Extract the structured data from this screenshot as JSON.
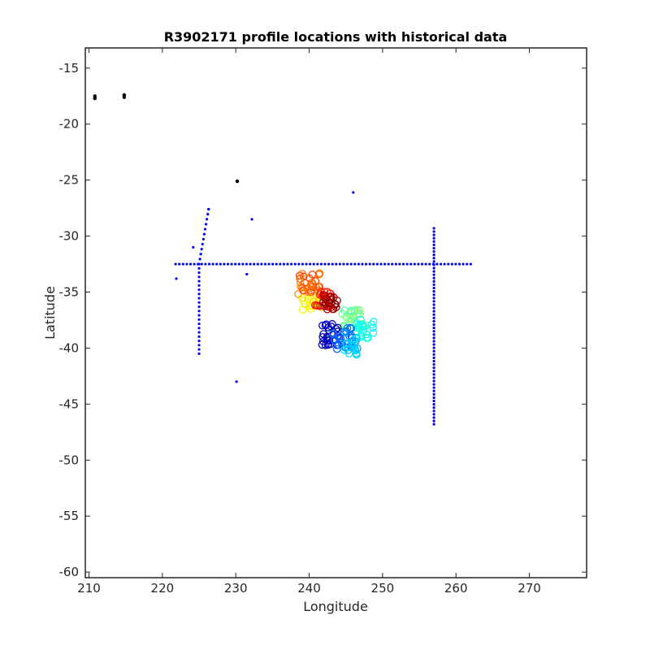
{
  "chart_data": {
    "type": "scatter",
    "title": "R3902171 profile locations with historical data",
    "xlabel": "Longitude",
    "ylabel": "Latitude",
    "xlim": [
      209.5,
      277.8
    ],
    "ylim": [
      -60.5,
      -13.2
    ],
    "xticks": [
      210,
      220,
      230,
      240,
      250,
      260,
      270
    ],
    "yticks": [
      -15,
      -20,
      -25,
      -30,
      -35,
      -40,
      -45,
      -50,
      -55,
      -60
    ],
    "grid": false,
    "legend": "none",
    "colors": {
      "axes": "#262626",
      "historical": "#0000ff",
      "reference": "#000000",
      "colormap": "jet"
    },
    "series": [
      {
        "role": "historical",
        "color": "#0000ff",
        "marker": "dot",
        "points": [
          [
            221.9,
            -33.8
          ],
          [
            224.2,
            -31.0
          ],
          [
            226.3,
            -27.6
          ],
          [
            232.2,
            -28.5
          ],
          [
            231.5,
            -33.4
          ],
          [
            246.0,
            -26.1
          ],
          [
            230.1,
            -43.0
          ]
        ],
        "lines": [
          {
            "from": [
              221.8,
              -32.5
            ],
            "to": [
              262.0,
              -32.5
            ],
            "count": 80
          },
          {
            "from": [
              225.0,
              -32.5
            ],
            "to": [
              225.0,
              -40.5
            ],
            "count": 22
          },
          {
            "from": [
              225.0,
              -32.5
            ],
            "to": [
              226.3,
              -27.6
            ],
            "count": 12
          },
          {
            "from": [
              257.0,
              -29.3
            ],
            "to": [
              257.0,
              -46.8
            ],
            "count": 60
          }
        ]
      },
      {
        "role": "reference",
        "color": "#000000",
        "marker": "dot",
        "points": [
          [
            210.8,
            -17.5
          ],
          [
            210.8,
            -17.7
          ],
          [
            214.8,
            -17.4
          ],
          [
            214.8,
            -17.6
          ],
          [
            230.2,
            -25.1
          ]
        ]
      },
      {
        "role": "float-profiles",
        "colormap": "jet",
        "marker": "profile-number",
        "clusters": [
          {
            "center": [
              240.0,
              -34.2
            ],
            "spread": [
              1.6,
              1.0
            ],
            "c": 0.78,
            "n": 30
          },
          {
            "center": [
              240.5,
              -36.0
            ],
            "spread": [
              1.5,
              0.6
            ],
            "c": 0.64,
            "n": 18
          },
          {
            "center": [
              242.0,
              -35.6
            ],
            "spread": [
              1.2,
              0.8
            ],
            "c": 0.86,
            "n": 24
          },
          {
            "center": [
              242.9,
              -35.9
            ],
            "spread": [
              1.0,
              0.7
            ],
            "c": 0.98,
            "n": 20
          },
          {
            "center": [
              246.0,
              -37.3
            ],
            "spread": [
              1.6,
              0.8
            ],
            "c": 0.48,
            "n": 22
          },
          {
            "center": [
              247.6,
              -38.3
            ],
            "spread": [
              1.2,
              0.9
            ],
            "c": 0.4,
            "n": 22
          },
          {
            "center": [
              242.8,
              -38.8
            ],
            "spread": [
              1.2,
              1.0
            ],
            "c": 0.06,
            "n": 26
          },
          {
            "center": [
              244.6,
              -39.2
            ],
            "spread": [
              1.4,
              1.1
            ],
            "c": 0.24,
            "n": 26
          },
          {
            "center": [
              245.6,
              -39.8
            ],
            "spread": [
              1.0,
              0.8
            ],
            "c": 0.32,
            "n": 18
          }
        ]
      }
    ]
  }
}
